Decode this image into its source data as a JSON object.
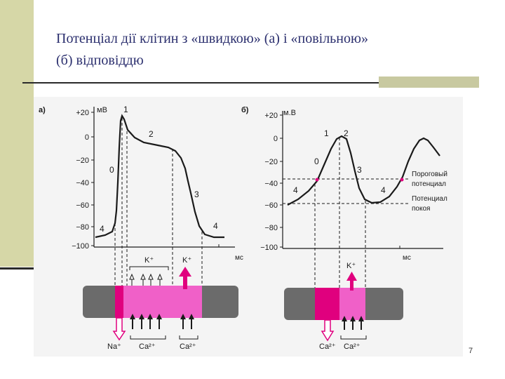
{
  "slide": {
    "title_line1": "Потенціал дії клітин з «швидкою» (а) і «повільною»",
    "title_line2": "(б) відповіддю",
    "page_number": "7"
  },
  "panel_a": {
    "label": "а)",
    "unit": "мВ",
    "y_ticks": [
      "+20",
      "0",
      "−20",
      "−40",
      "−60",
      "−80",
      "−100"
    ],
    "time_unit": "мс",
    "phase_labels": [
      "0",
      "1",
      "2",
      "3",
      "4",
      "4"
    ],
    "ion_k_top": "K⁺",
    "ion_k_out": "K⁺",
    "ion_na": "Na⁺",
    "ion_ca1": "Ca²⁺",
    "ion_ca2": "Ca²⁺"
  },
  "panel_b": {
    "label": "б)",
    "unit": "м.В",
    "y_ticks": [
      "+20",
      "0",
      "−20",
      "−40",
      "−60",
      "−80",
      "−100"
    ],
    "time_unit": "мс",
    "phase_labels": [
      "0",
      "1",
      "2",
      "3",
      "4",
      "4"
    ],
    "threshold_label_1": "Пороговый",
    "threshold_label_2": "потенциал",
    "rest_label_1": "Потенциал",
    "rest_label_2": "покоя",
    "ion_k": "K⁺",
    "ion_ca1": "Ca²⁺",
    "ion_ca2": "Ca²⁺"
  },
  "colors": {
    "title": "#2b2f6e",
    "curve": "#1a1a1a",
    "membrane": "#6b6b6b",
    "pink": "#f060c8",
    "magenta": "#e0007e",
    "sidebar": "#d6d7a7"
  }
}
